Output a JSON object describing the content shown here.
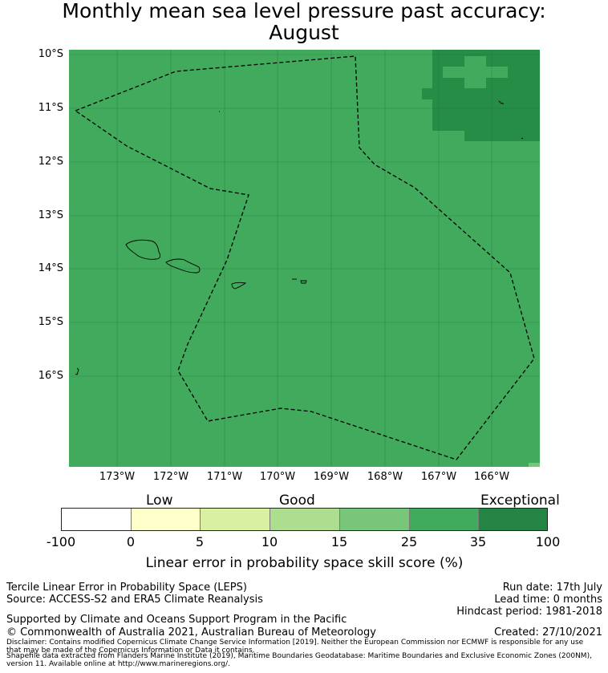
{
  "title": {
    "line1": "Monthly mean sea level pressure past accuracy:",
    "line2": "August"
  },
  "map": {
    "lat_labels": [
      "10°S",
      "11°S",
      "12°S",
      "13°S",
      "14°S",
      "15°S",
      "16°S"
    ],
    "lon_labels": [
      "173°W",
      "172°W",
      "171°W",
      "170°W",
      "169°W",
      "168°W",
      "167°W",
      "166°W"
    ],
    "background_category": "25 to 35",
    "background_color": "#41aa5d",
    "exceptional_region_color": "#258d46",
    "eez_boundary_style": "black dashed line",
    "landmass_outline_color": "#000000"
  },
  "colorbar": {
    "category_labels": [
      "Low",
      "Good",
      "Exceptional"
    ],
    "segments": [
      {
        "from": -100,
        "to": 0,
        "color": "#ffffff"
      },
      {
        "from": 0,
        "to": 5,
        "color": "#ffffcb"
      },
      {
        "from": 5,
        "to": 10,
        "color": "#d9f0a3"
      },
      {
        "from": 10,
        "to": 15,
        "color": "#addd8e"
      },
      {
        "from": 15,
        "to": 25,
        "color": "#78c679"
      },
      {
        "from": 25,
        "to": 35,
        "color": "#41ab5d"
      },
      {
        "from": 35,
        "to": 100,
        "color": "#238443"
      }
    ],
    "ticks": [
      "-100",
      "0",
      "5",
      "10",
      "15",
      "25",
      "35",
      "100"
    ],
    "label": "Linear error in probability space skill score (%)"
  },
  "footer": {
    "left_line1": "Tercile Linear Error in Probability Space (LEPS)",
    "left_line2": "Source: ACCESS-S2 and ERA5 Climate Reanalysis",
    "support": "Supported by Climate and Oceans Support Program in the Pacific",
    "copyright": "© Commonwealth of Australia 2021, Australian Bureau of Meteorology",
    "run_date": "Run date: 17th July",
    "lead_time": "Lead time: 0 months",
    "hindcast": "Hindcast period: 1981-2018",
    "created": "Created: 27/10/2021",
    "disclaimer_line1": "Disclaimer: Contains modified Copernicus Climate Change Service Information [2019]. Neither the European Commission nor ECMWF is responsible for any use",
    "disclaimer_line2": "that may be made of the Copernicus Information or Data it contains.",
    "shapefile_line1": "Shapefile data extracted from Flanders Marine Institute (2019), Maritime Boundaries Geodatabase: Maritime Boundaries and Exclusive Economic Zones (200NM),",
    "shapefile_line2": "version 11. Available online at http://www.marineregions.org/."
  }
}
